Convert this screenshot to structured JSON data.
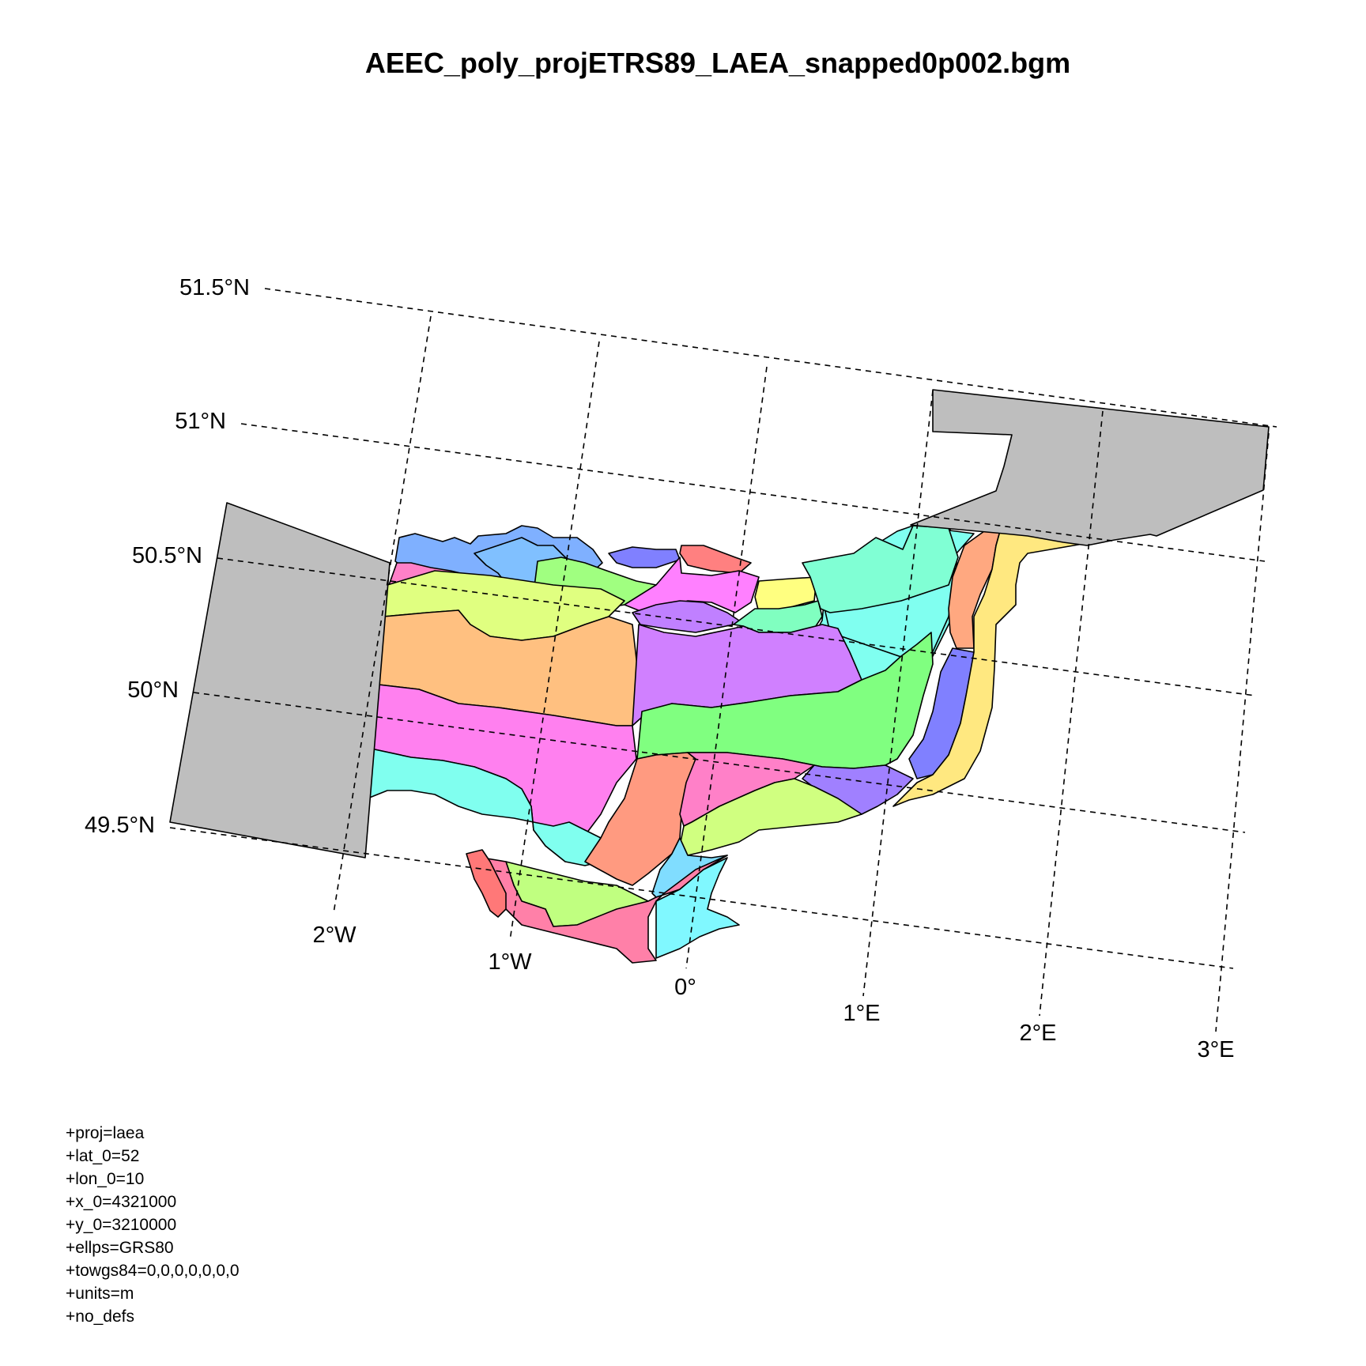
{
  "title": "AEEC_poly_projETRS89_LAEA_snapped0p002.bgm",
  "latitude_labels": [
    "51.5°N",
    "51°N",
    "50.5°N",
    "50°N",
    "49.5°N"
  ],
  "longitude_labels": [
    "2°W",
    "1°W",
    "0°",
    "1°E",
    "2°E",
    "3°E"
  ],
  "projection": [
    "+proj=laea",
    "+lat_0=52",
    "+lon_0=10",
    "+x_0=4321000",
    "+y_0=3210000",
    "+ellps=GRS80",
    "+towgs84=0,0,0,0,0,0,0",
    "+units=m",
    "+no_defs"
  ],
  "colors": {
    "land": "#bebebe",
    "box_palette": [
      "#7fb0ff",
      "#ff80c8",
      "#e0ff80",
      "#ffc080",
      "#ff80ef",
      "#80ffef",
      "#c980ff",
      "#80ff80",
      "#ff9a80",
      "#ffe880",
      "#8080ff",
      "#ffa880",
      "#80ffd4",
      "#ffff80",
      "#ff8080",
      "#c0ff80"
    ]
  }
}
